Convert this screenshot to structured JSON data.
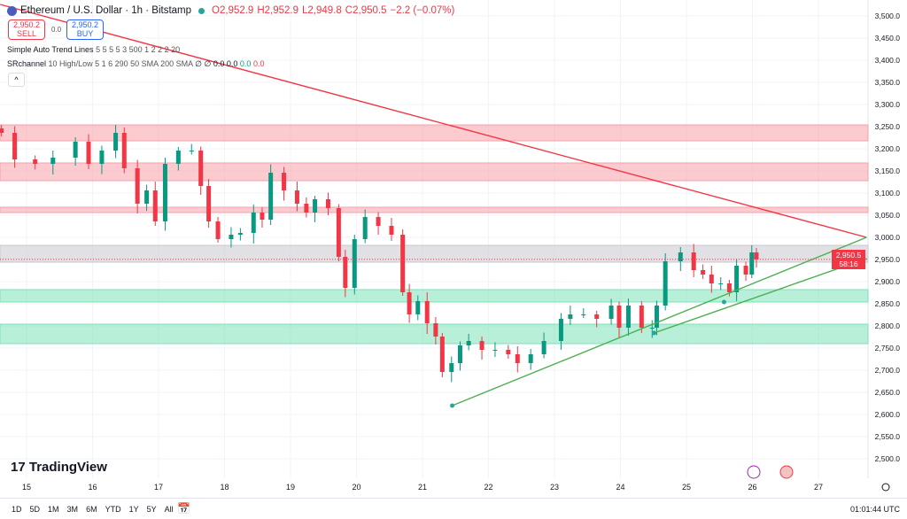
{
  "header": {
    "symbol": "Ethereum / U.S. Dollar · 1h · Bitstamp",
    "open": "O2,952.9",
    "high": "H2,952.9",
    "low": "L2,949.8",
    "close": "C2,950.5",
    "change": "−2.2 (−0.07%)"
  },
  "trade": {
    "sell_price": "2,950.2",
    "sell_label": "SELL",
    "spread": "0.0",
    "buy_price": "2,950.2",
    "buy_label": "BUY"
  },
  "indicators": [
    {
      "name": "Simple Auto Trend Lines",
      "params": "5 5 5 5 3 500 1 2 2 2 20"
    },
    {
      "name": "SRchannel",
      "params": "10 High/Low 5 1 6 290 50 SMA 200 SMA",
      "values": "∅ ∅ 0.0 0.0",
      "v_green": "0.0",
      "v_red": "0.0"
    }
  ],
  "price_label": {
    "price": "2,950.5",
    "countdown": "58:16"
  },
  "logo": "TradingView",
  "ranges": [
    "1D",
    "5D",
    "1M",
    "3M",
    "6M",
    "YTD",
    "1Y",
    "5Y",
    "All"
  ],
  "clock": "01:01:44 UTC",
  "colors": {
    "up": "#089981",
    "down": "#f23645",
    "resistance": "#f7a1a8",
    "support": "#7ee2b8",
    "neutral": "#c8c9cf"
  },
  "chart_data": {
    "type": "candlestick",
    "x_ticks": [
      "15",
      "16",
      "17",
      "18",
      "19",
      "20",
      "21",
      "22",
      "23",
      "24",
      "25",
      "26",
      "27"
    ],
    "y_ticks": [
      "3,500.0",
      "3,450.0",
      "3,400.0",
      "3,350.0",
      "3,300.0",
      "3,250.0",
      "3,200.0",
      "3,150.0",
      "3,100.0",
      "3,050.0",
      "3,000.0",
      "2,950.0",
      "2,900.0",
      "2,850.0",
      "2,800.0",
      "2,750.0",
      "2,700.0",
      "2,650.0",
      "2,600.0",
      "2,550.0",
      "2,500.0"
    ],
    "ylim": [
      2480,
      3536
    ],
    "xlim": [
      14.6,
      27.9
    ],
    "closes": [
      [
        14.62,
        3236
      ],
      [
        14.82,
        3176
      ],
      [
        15.13,
        3166
      ],
      [
        15.4,
        3180
      ],
      [
        15.74,
        3216
      ],
      [
        15.94,
        3166
      ],
      [
        16.14,
        3196
      ],
      [
        16.35,
        3236
      ],
      [
        16.48,
        3156
      ],
      [
        16.68,
        3076
      ],
      [
        16.82,
        3106
      ],
      [
        16.95,
        3036
      ],
      [
        17.1,
        3166
      ],
      [
        17.3,
        3196
      ],
      [
        17.5,
        3196
      ],
      [
        17.64,
        3116
      ],
      [
        17.76,
        3036
      ],
      [
        17.9,
        2996
      ],
      [
        18.1,
        3006
      ],
      [
        18.24,
        3010
      ],
      [
        18.44,
        3056
      ],
      [
        18.57,
        3040
      ],
      [
        18.7,
        3146
      ],
      [
        18.9,
        3106
      ],
      [
        19.1,
        3076
      ],
      [
        19.24,
        3056
      ],
      [
        19.37,
        3086
      ],
      [
        19.57,
        3066
      ],
      [
        19.73,
        2956
      ],
      [
        19.83,
        2886
      ],
      [
        19.97,
        2996
      ],
      [
        20.13,
        3046
      ],
      [
        20.33,
        3026
      ],
      [
        20.53,
        3006
      ],
      [
        20.7,
        2876
      ],
      [
        20.8,
        2826
      ],
      [
        20.93,
        2856
      ],
      [
        21.07,
        2806
      ],
      [
        21.2,
        2776
      ],
      [
        21.3,
        2696
      ],
      [
        21.44,
        2716
      ],
      [
        21.57,
        2756
      ],
      [
        21.7,
        2766
      ],
      [
        21.9,
        2746
      ],
      [
        22.1,
        2746
      ],
      [
        22.3,
        2736
      ],
      [
        22.44,
        2716
      ],
      [
        22.64,
        2736
      ],
      [
        22.84,
        2766
      ],
      [
        23.1,
        2816
      ],
      [
        23.24,
        2826
      ],
      [
        23.44,
        2826
      ],
      [
        23.64,
        2816
      ],
      [
        23.86,
        2846
      ],
      [
        23.98,
        2796
      ],
      [
        24.12,
        2846
      ],
      [
        24.32,
        2796
      ],
      [
        24.48,
        2796
      ],
      [
        24.55,
        2846
      ],
      [
        24.68,
        2946
      ],
      [
        24.91,
        2966
      ],
      [
        25.11,
        2926
      ],
      [
        25.25,
        2916
      ],
      [
        25.38,
        2896
      ],
      [
        25.52,
        2896
      ],
      [
        25.65,
        2876
      ],
      [
        25.76,
        2936
      ],
      [
        25.9,
        2916
      ],
      [
        25.99,
        2966
      ],
      [
        26.06,
        2950.5
      ]
    ],
    "zones": [
      {
        "kind": "resistance",
        "from": 3218,
        "to": 3254
      },
      {
        "kind": "resistance",
        "from": 3128,
        "to": 3168
      },
      {
        "kind": "resistance",
        "from": 3056,
        "to": 3068
      },
      {
        "kind": "neutral",
        "from": 2944,
        "to": 2982
      },
      {
        "kind": "support",
        "from": 2854,
        "to": 2882
      },
      {
        "kind": "support",
        "from": 2760,
        "to": 2804
      }
    ],
    "trend_lines": [
      {
        "color": "#f23645",
        "from": [
          14.6,
          3526
        ],
        "to": [
          27.73,
          3000
        ]
      },
      {
        "color": "#4caf50",
        "from": [
          21.45,
          2620
        ],
        "to": [
          27.73,
          3000
        ]
      },
      {
        "color": "#4caf50",
        "from": [
          24.51,
          2784
        ],
        "to": [
          27.73,
          2952
        ]
      }
    ],
    "pivots": [
      [
        21.45,
        2620
      ],
      [
        24.51,
        2784
      ],
      [
        25.57,
        2854
      ]
    ],
    "last_price": 2950.5
  }
}
